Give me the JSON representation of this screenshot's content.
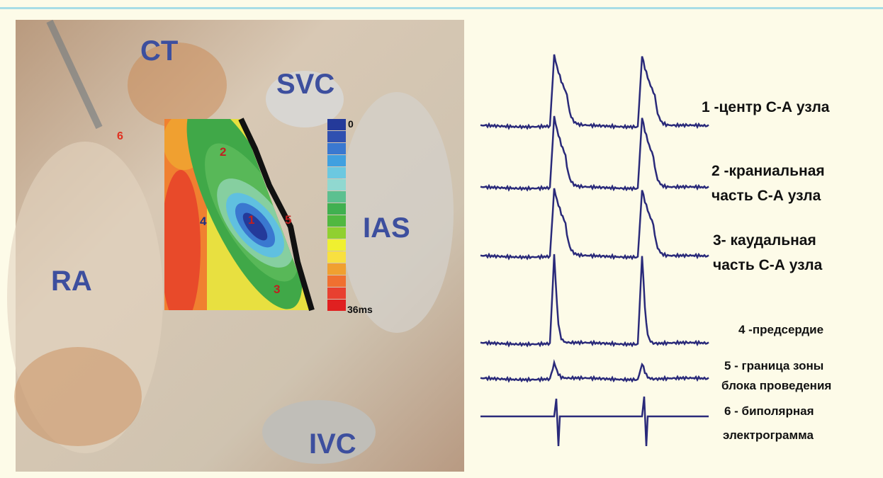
{
  "photo": {
    "labels": [
      "CT",
      "SVC",
      "IAS",
      "RA",
      "IVC"
    ],
    "site_markers": [
      "6"
    ]
  },
  "activation_map": {
    "markers": [
      "2",
      "4",
      "1",
      "5",
      "3"
    ],
    "colorbar": {
      "top_label": "0",
      "bottom_label": "36ms"
    }
  },
  "traces": [
    {
      "label": [
        "1 -центр С-А узла"
      ]
    },
    {
      "label": [
        "2 -краниальная",
        "часть С-А узла"
      ]
    },
    {
      "label": [
        "3- каудальная",
        "часть С-А узла"
      ]
    },
    {
      "label": [
        "4 -предсердие"
      ]
    },
    {
      "label": [
        "5 - граница зоны",
        "блока проведения"
      ]
    },
    {
      "label": [
        "6 - биполярная",
        "электрограмма"
      ]
    }
  ]
}
